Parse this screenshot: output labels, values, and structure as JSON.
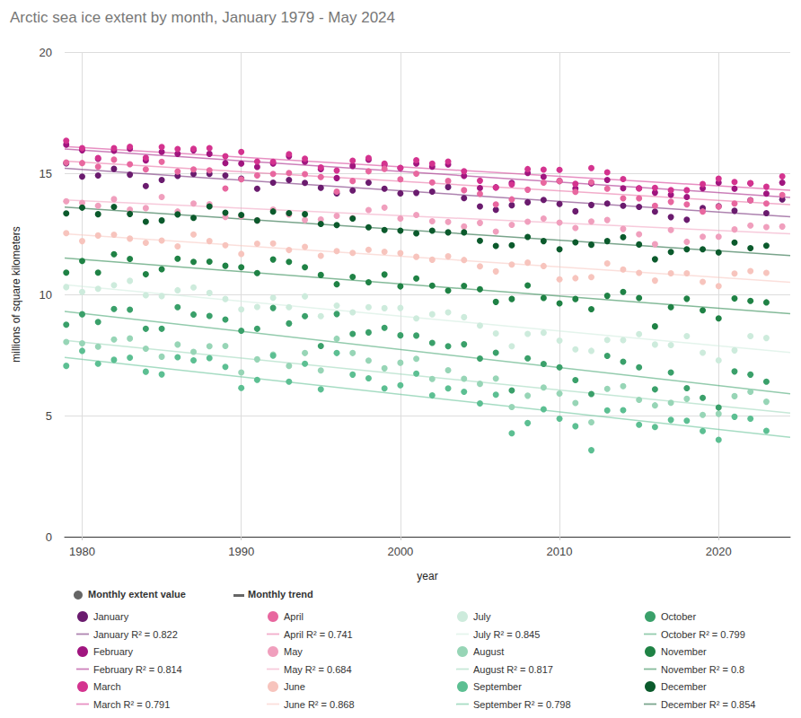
{
  "chart_data": {
    "type": "scatter",
    "title": "Arctic sea ice extent by month, January 1979 - May 2024",
    "x_label": "year",
    "y_label": "millions of square kilometers",
    "xlim": [
      1978.9,
      2024.5
    ],
    "xticks": [
      1980,
      1990,
      2000,
      2010,
      2020
    ],
    "ylim": [
      0,
      20
    ],
    "yticks": [
      0,
      5,
      10,
      15,
      20
    ],
    "grid": true,
    "legend": "bottom",
    "annotations": [
      {
        "text": "Monthly extent value",
        "marker": "circle",
        "color": "#666666"
      },
      {
        "text": "Monthly trend",
        "line_style": "solid",
        "color": "#666666"
      }
    ],
    "x": [
      1979,
      1980,
      1981,
      1982,
      1983,
      1984,
      1985,
      1986,
      1987,
      1988,
      1989,
      1990,
      1991,
      1992,
      1993,
      1994,
      1995,
      1996,
      1997,
      1998,
      1999,
      2000,
      2001,
      2002,
      2003,
      2004,
      2005,
      2006,
      2007,
      2008,
      2009,
      2010,
      2011,
      2012,
      2013,
      2014,
      2015,
      2016,
      2017,
      2018,
      2019,
      2020,
      2021,
      2022,
      2023,
      2024
    ],
    "series": [
      {
        "name": "January",
        "type": "scatter",
        "marker": "circle",
        "color": "#6a1b6e",
        "values": [
          15.41,
          14.86,
          14.91,
          15.18,
          14.94,
          14.47,
          14.72,
          14.89,
          14.97,
          14.97,
          14.91,
          14.78,
          14.36,
          14.61,
          14.72,
          14.6,
          14.4,
          14.17,
          14.29,
          14.61,
          14.36,
          14.17,
          14.19,
          14.24,
          14.43,
          13.97,
          13.63,
          13.49,
          13.68,
          13.8,
          13.9,
          13.73,
          13.43,
          13.69,
          13.75,
          13.66,
          13.61,
          13.42,
          13.19,
          13.08,
          13.56,
          13.64,
          13.45,
          13.89,
          13.35,
          13.92
        ]
      },
      {
        "name": "January R² = 0.822",
        "type": "line",
        "line_style": "solid",
        "color": "#6a1b6e",
        "x": [
          1978.9,
          2024.5
        ],
        "values": [
          15.2,
          13.2
        ]
      },
      {
        "name": "February",
        "type": "scatter",
        "marker": "circle",
        "color": "#a0157f",
        "values": [
          16.18,
          15.95,
          15.59,
          15.93,
          16.01,
          15.53,
          15.88,
          15.8,
          15.95,
          15.8,
          15.42,
          15.4,
          15.26,
          15.4,
          15.7,
          15.47,
          15.17,
          14.8,
          15.3,
          15.56,
          15.35,
          15.21,
          15.4,
          15.27,
          15.36,
          14.89,
          14.39,
          14.42,
          14.6,
          15.01,
          14.85,
          14.68,
          14.37,
          14.58,
          14.72,
          14.38,
          14.38,
          14.2,
          14.11,
          14.02,
          14.38,
          14.61,
          14.36,
          14.58,
          14.16,
          14.61
        ]
      },
      {
        "name": "February R² = 0.814",
        "type": "line",
        "line_style": "solid",
        "color": "#a0157f",
        "x": [
          1978.9,
          2024.5
        ],
        "values": [
          16.0,
          14.0
        ]
      },
      {
        "name": "March",
        "type": "scatter",
        "marker": "circle",
        "color": "#d4338f",
        "values": [
          16.34,
          16.04,
          15.63,
          16.04,
          16.09,
          15.64,
          16.08,
          16.0,
          16.01,
          16.04,
          15.7,
          15.88,
          15.48,
          15.47,
          15.79,
          15.6,
          15.24,
          15.11,
          15.52,
          15.63,
          15.4,
          15.22,
          15.54,
          15.4,
          15.48,
          15.08,
          14.69,
          14.41,
          14.54,
          15.17,
          15.15,
          15.14,
          14.56,
          15.21,
          15.04,
          14.76,
          14.37,
          14.4,
          14.3,
          14.3,
          14.55,
          14.78,
          14.64,
          14.59,
          14.44,
          14.87
        ]
      },
      {
        "name": "March R² = 0.791",
        "type": "line",
        "line_style": "solid",
        "color": "#d4338f",
        "x": [
          1978.9,
          2024.5
        ],
        "values": [
          16.1,
          14.3
        ]
      },
      {
        "name": "April",
        "type": "scatter",
        "marker": "circle",
        "color": "#e8679f",
        "values": [
          15.44,
          15.42,
          15.27,
          15.56,
          15.37,
          15.16,
          15.47,
          15.07,
          15.16,
          15.12,
          14.37,
          14.75,
          14.91,
          14.97,
          15.01,
          14.96,
          14.84,
          14.24,
          14.68,
          15.08,
          15.18,
          14.75,
          14.98,
          14.62,
          14.68,
          14.3,
          14.15,
          13.71,
          13.92,
          14.32,
          14.61,
          14.68,
          14.23,
          14.63,
          14.36,
          13.96,
          13.96,
          13.66,
          13.82,
          13.71,
          13.42,
          13.62,
          13.75,
          13.88,
          13.75,
          14.1
        ]
      },
      {
        "name": "April R² = 0.741",
        "type": "line",
        "line_style": "solid",
        "color": "#e8679f",
        "x": [
          1978.9,
          2024.5
        ],
        "values": [
          15.5,
          13.7
        ]
      },
      {
        "name": "May",
        "type": "scatter",
        "marker": "circle",
        "color": "#f09fbd",
        "values": [
          13.84,
          13.78,
          13.66,
          13.93,
          13.5,
          13.56,
          14.02,
          13.42,
          13.75,
          13.72,
          13.2,
          13.22,
          13.05,
          13.5,
          13.3,
          13.07,
          13.09,
          13.24,
          13.15,
          13.48,
          13.58,
          13.13,
          13.28,
          13.02,
          12.99,
          12.8,
          12.95,
          12.59,
          12.87,
          13.0,
          13.13,
          12.96,
          12.74,
          13.01,
          13.07,
          12.7,
          12.48,
          12.07,
          12.66,
          12.17,
          12.38,
          12.38,
          12.68,
          12.84,
          12.78,
          12.8
        ]
      },
      {
        "name": "May R² = 0.684",
        "type": "line",
        "line_style": "solid",
        "color": "#f09fbd",
        "x": [
          1978.9,
          2024.5
        ],
        "values": [
          13.9,
          12.5
        ]
      },
      {
        "name": "June",
        "type": "scatter",
        "marker": "circle",
        "color": "#f7c4bd",
        "values": [
          12.53,
          12.2,
          12.43,
          12.46,
          12.3,
          12.13,
          12.22,
          11.98,
          12.47,
          12.2,
          12.03,
          11.67,
          12.09,
          12.1,
          11.83,
          11.96,
          11.59,
          11.79,
          11.71,
          11.84,
          11.76,
          11.7,
          11.55,
          11.43,
          11.57,
          11.42,
          11.16,
          10.95,
          11.23,
          11.31,
          11.17,
          10.62,
          10.67,
          10.71,
          11.28,
          11.03,
          10.89,
          10.57,
          10.87,
          10.87,
          10.52,
          10.34,
          10.86,
          10.96,
          10.89,
          null
        ]
      },
      {
        "name": "June R² = 0.868",
        "type": "line",
        "line_style": "solid",
        "color": "#f7c4bd",
        "x": [
          1978.9,
          2024.5
        ],
        "values": [
          12.5,
          10.5
        ]
      },
      {
        "name": "July",
        "type": "scatter",
        "marker": "circle",
        "color": "#cdebdc",
        "values": [
          10.3,
          10.1,
          10.23,
          10.38,
          10.56,
          9.96,
          9.93,
          10.17,
          10.29,
          10.06,
          9.81,
          9.38,
          9.48,
          9.86,
          9.47,
          9.92,
          9.1,
          9.54,
          9.26,
          9.47,
          9.43,
          9.44,
          9.01,
          9.18,
          9.26,
          9.06,
          8.71,
          8.39,
          7.86,
          8.37,
          8.42,
          8.09,
          7.73,
          7.67,
          8.12,
          8.11,
          8.36,
          7.93,
          7.91,
          8.28,
          7.59,
          7.28,
          7.69,
          8.28,
          8.2,
          null
        ]
      },
      {
        "name": "July R² = 0.845",
        "type": "line",
        "line_style": "solid",
        "color": "#cdebdc",
        "x": [
          1978.9,
          2024.5
        ],
        "values": [
          10.4,
          7.6
        ]
      },
      {
        "name": "August",
        "type": "scatter",
        "marker": "circle",
        "color": "#97d5b6",
        "values": [
          8.04,
          7.98,
          7.84,
          8.14,
          8.18,
          7.76,
          7.43,
          7.93,
          7.63,
          7.86,
          7.87,
          6.78,
          7.32,
          7.52,
          7.05,
          7.58,
          6.86,
          8.17,
          7.58,
          7.27,
          6.95,
          7.18,
          7.34,
          6.51,
          6.87,
          6.52,
          6.31,
          6.53,
          5.35,
          5.82,
          6.16,
          5.91,
          5.52,
          4.72,
          6.1,
          6.21,
          5.65,
          5.42,
          5.53,
          5.69,
          5.03,
          5.07,
          5.8,
          5.98,
          5.57,
          null
        ]
      },
      {
        "name": "August R² = 0.817",
        "type": "line",
        "line_style": "solid",
        "color": "#97d5b6",
        "x": [
          1978.9,
          2024.5
        ],
        "values": [
          8.1,
          5.1
        ]
      },
      {
        "name": "September",
        "type": "scatter",
        "marker": "circle",
        "color": "#5cbf92",
        "values": [
          7.05,
          7.67,
          7.14,
          7.3,
          7.39,
          6.81,
          6.7,
          7.41,
          7.28,
          7.37,
          7.01,
          6.14,
          6.47,
          7.47,
          6.4,
          7.14,
          6.08,
          7.58,
          6.69,
          6.54,
          6.12,
          6.25,
          6.73,
          5.83,
          6.12,
          5.98,
          5.5,
          5.86,
          4.27,
          4.69,
          5.26,
          4.87,
          4.56,
          3.57,
          5.21,
          5.22,
          4.62,
          4.53,
          4.82,
          4.79,
          4.36,
          4.0,
          4.95,
          4.87,
          4.37,
          null
        ]
      },
      {
        "name": "September R² = 0.798",
        "type": "line",
        "line_style": "solid",
        "color": "#5cbf92",
        "x": [
          1978.9,
          2024.5
        ],
        "values": [
          7.4,
          4.1
        ]
      },
      {
        "name": "October",
        "type": "scatter",
        "marker": "circle",
        "color": "#3aa06a",
        "values": [
          8.75,
          9.18,
          8.86,
          9.4,
          9.37,
          8.58,
          8.58,
          9.47,
          9.17,
          9.11,
          8.96,
          8.5,
          8.58,
          9.44,
          8.8,
          9.1,
          7.87,
          9.19,
          8.37,
          8.43,
          8.62,
          8.31,
          8.3,
          8.0,
          7.86,
          7.94,
          7.35,
          7.59,
          6.04,
          7.36,
          7.13,
          6.99,
          6.46,
          5.89,
          7.46,
          7.22,
          6.99,
          6.08,
          6.78,
          6.13,
          5.73,
          5.33,
          6.82,
          6.69,
          6.4,
          null
        ]
      },
      {
        "name": "October R² = 0.799",
        "type": "line",
        "line_style": "solid",
        "color": "#3aa06a",
        "x": [
          1978.9,
          2024.5
        ],
        "values": [
          9.3,
          5.9
        ]
      },
      {
        "name": "November",
        "type": "scatter",
        "marker": "circle",
        "color": "#1f8245",
        "values": [
          10.9,
          11.38,
          10.9,
          11.66,
          11.46,
          10.83,
          11.04,
          11.47,
          11.34,
          11.35,
          11.18,
          11.12,
          10.88,
          11.44,
          11.34,
          11.12,
          10.8,
          10.42,
          10.72,
          10.5,
          10.82,
          10.33,
          10.66,
          10.36,
          10.16,
          10.35,
          10.21,
          9.69,
          9.81,
          10.37,
          9.85,
          9.63,
          9.81,
          9.39,
          9.94,
          10.1,
          9.85,
          8.68,
          9.47,
          9.82,
          9.34,
          9.01,
          9.83,
          9.73,
          9.67,
          null
        ]
      },
      {
        "name": "November R² = 0.8",
        "type": "line",
        "line_style": "solid",
        "color": "#1f8245",
        "x": [
          1978.9,
          2024.5
        ],
        "values": [
          11.5,
          9.2
        ]
      },
      {
        "name": "December",
        "type": "scatter",
        "marker": "circle",
        "color": "#0b5a2c",
        "values": [
          13.34,
          13.58,
          13.31,
          13.61,
          13.32,
          13.0,
          13.05,
          13.3,
          13.16,
          13.63,
          13.37,
          13.28,
          13.05,
          13.42,
          13.35,
          13.31,
          12.91,
          12.86,
          13.13,
          12.77,
          12.66,
          12.63,
          12.52,
          12.63,
          12.56,
          12.56,
          12.21,
          12.0,
          12.03,
          12.37,
          12.2,
          11.86,
          12.15,
          12.05,
          12.2,
          12.36,
          12.06,
          11.45,
          11.75,
          11.86,
          11.86,
          11.73,
          12.14,
          11.91,
          12.01,
          null
        ]
      },
      {
        "name": "December R² = 0.854",
        "type": "line",
        "line_style": "solid",
        "color": "#0b5a2c",
        "x": [
          1978.9,
          2024.5
        ],
        "values": [
          13.6,
          11.6
        ]
      }
    ]
  }
}
